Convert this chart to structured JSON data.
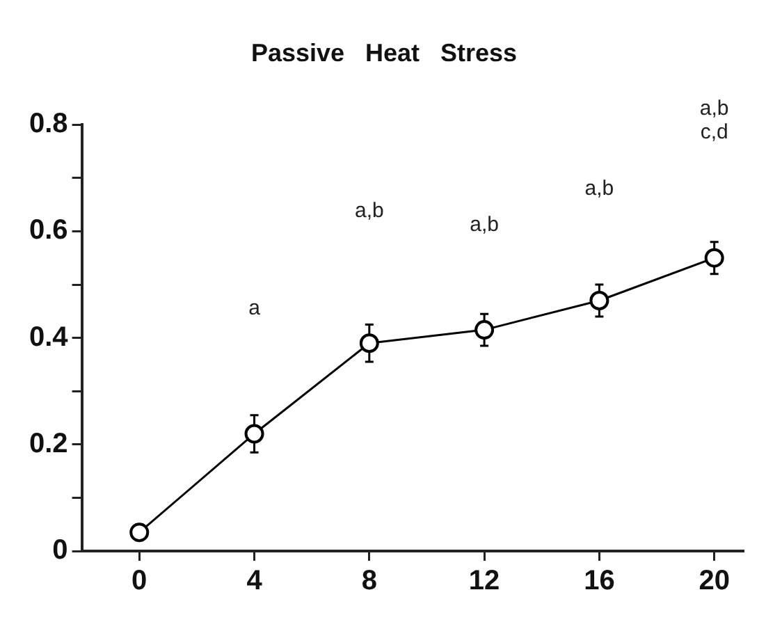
{
  "chart_data": {
    "type": "line",
    "title": "Passive   Heat   Stress",
    "x": [
      0,
      4,
      8,
      12,
      16,
      20
    ],
    "series": [
      {
        "color": "#000000",
        "values": [
          0.035,
          0.22,
          0.39,
          0.415,
          0.47,
          0.55
        ],
        "errors": [
          0.015,
          0.035,
          0.035,
          0.03,
          0.03,
          0.03
        ]
      }
    ],
    "xlim": [
      -2,
      21
    ],
    "xticks": [
      0,
      4,
      8,
      12,
      16,
      20
    ],
    "ylim": [
      0,
      0.8
    ],
    "yticks": [
      0,
      {
        "value": 0.1,
        "label": null
      },
      0.2,
      {
        "value": 0.3,
        "label": null
      },
      0.4,
      {
        "value": 0.5,
        "label": null
      },
      0.6,
      {
        "value": 0.7,
        "label": null
      },
      0.8
    ],
    "annotations": [
      "a",
      "a,b",
      "a,b",
      "a,b",
      "a,b c,d"
    ],
    "grid": false,
    "legend": false,
    "marker": "circle",
    "line_style": "solid"
  }
}
